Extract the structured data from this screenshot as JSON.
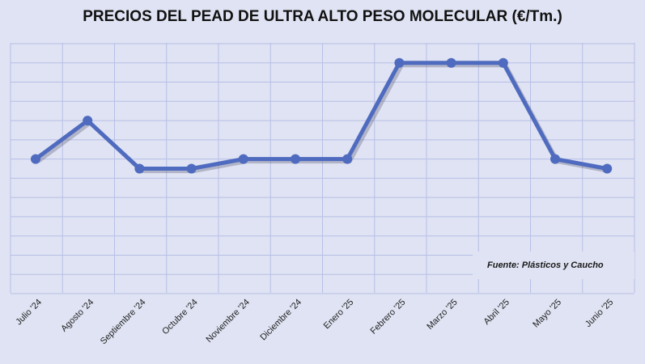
{
  "chart_data": {
    "type": "line",
    "title": "PRECIOS DEL PEAD DE ULTRA ALTO PESO MOLECULAR (€/Tm.)",
    "categories": [
      "Julio '24",
      "Agosto '24",
      "Septiembre '24",
      "Octubre '24",
      "Noviembre '24",
      "Diciembre '24",
      "Enero '25",
      "Febrero '25",
      "Marzo '25",
      "Abril '25",
      "Mayo '25",
      "Junio '25"
    ],
    "series": [
      {
        "values": [
          5,
          7,
          4.5,
          4.5,
          5,
          5,
          5,
          10,
          10,
          10,
          5,
          4.5
        ]
      }
    ],
    "ylim": [
      -2,
      11
    ],
    "y_axis_labels": "none",
    "grid": true,
    "colors": {
      "line": "#4f6bbf",
      "grid": "#b7bfe6",
      "background": "#dfe3f3"
    },
    "annotation": "Fuente: Plásticos y Caucho"
  }
}
